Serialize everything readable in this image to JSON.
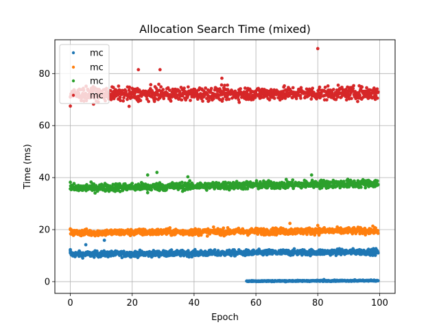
{
  "chart_data": {
    "type": "scatter",
    "title": "Allocation Search Time (mixed)",
    "xlabel": "Epoch",
    "ylabel": "Time (ms)",
    "xlim": [
      -5,
      105
    ],
    "ylim": [
      -4.5,
      93
    ],
    "xticks": [
      0,
      20,
      40,
      60,
      80,
      100
    ],
    "yticks": [
      0,
      20,
      40,
      60,
      80
    ],
    "grid": true,
    "legend_position": "top-left",
    "series": [
      {
        "name": "mc",
        "color": "#1f77b4",
        "x_range": [
          0,
          99.5
        ],
        "center": 10.5,
        "trend": 1.0,
        "spread": 0.8,
        "outliers": [
          [
            0,
            12.3
          ],
          [
            5,
            14.2
          ],
          [
            11,
            15.9
          ],
          [
            0,
            11.8
          ]
        ]
      },
      {
        "name": "mc",
        "color": "#ff7f0e",
        "x_range": [
          0,
          99.5
        ],
        "center": 18.8,
        "trend": 0.8,
        "spread": 0.9,
        "outliers": [
          [
            0,
            20.3
          ],
          [
            71,
            22.4
          ],
          [
            80,
            21.6
          ]
        ]
      },
      {
        "name": "mc",
        "color": "#2ca02c",
        "x_range": [
          0,
          99.5
        ],
        "center": 36.0,
        "trend": 1.8,
        "spread": 1.1,
        "outliers": [
          [
            25,
            41.0
          ],
          [
            28,
            42.0
          ],
          [
            38,
            40.3
          ],
          [
            78,
            41.0
          ],
          [
            25,
            34.2
          ],
          [
            0,
            38.2
          ]
        ]
      },
      {
        "name": "mc",
        "color": "#d62728",
        "x_range": [
          0,
          99.5
        ],
        "center": 72.0,
        "trend": 0.5,
        "spread": 1.8,
        "outliers": [
          [
            80,
            89.6
          ],
          [
            22,
            81.5
          ],
          [
            29,
            81.5
          ],
          [
            19,
            67.4
          ],
          [
            0,
            67.5
          ],
          [
            49,
            78.2
          ]
        ]
      },
      {
        "name": "",
        "color": "#1f77b4",
        "x_range": [
          57,
          99.5
        ],
        "center": 0.2,
        "trend": 0.2,
        "spread": 0.15,
        "outliers": [
          [
            82,
            0.8
          ],
          [
            92,
            0.7
          ]
        ]
      }
    ]
  }
}
